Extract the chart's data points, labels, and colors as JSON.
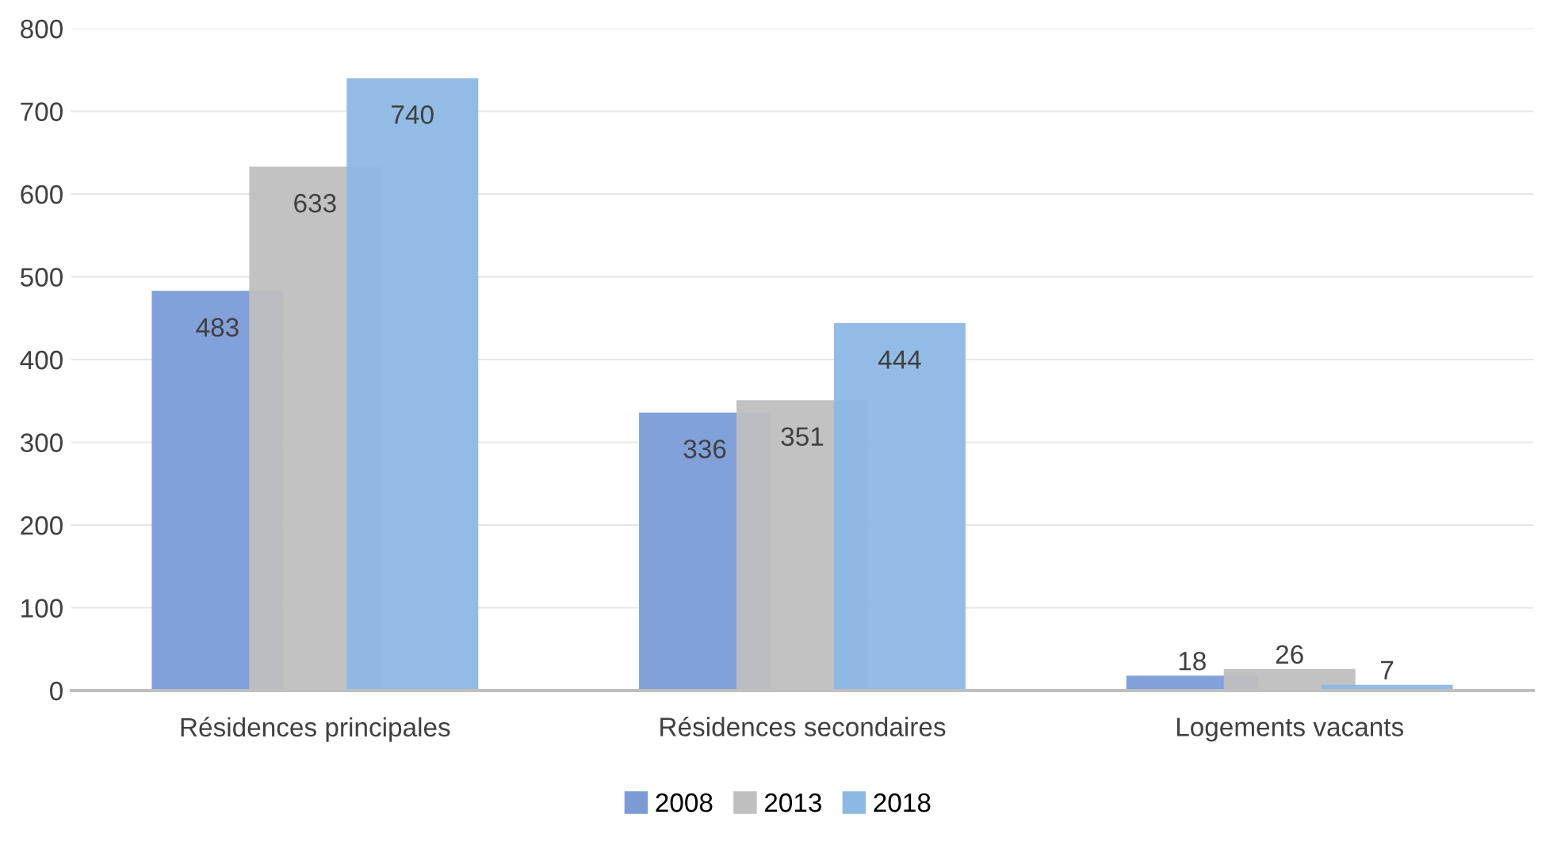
{
  "chart_data": {
    "type": "bar",
    "categories": [
      "Résidences principales",
      "Résidences secondaires",
      "Logements vacants"
    ],
    "series": [
      {
        "name": "2008",
        "color": "#7b9bd7",
        "values": [
          483,
          336,
          18
        ]
      },
      {
        "name": "2013",
        "color": "#bfbfbf",
        "values": [
          633,
          351,
          26
        ]
      },
      {
        "name": "2018",
        "color": "#8cb8e4",
        "values": [
          740,
          444,
          7
        ]
      }
    ],
    "ylim": [
      0,
      800
    ],
    "yticks": [
      0,
      100,
      200,
      300,
      400,
      500,
      600,
      700,
      800
    ],
    "grid": "y",
    "legend": "bottom",
    "data_labels": true
  }
}
